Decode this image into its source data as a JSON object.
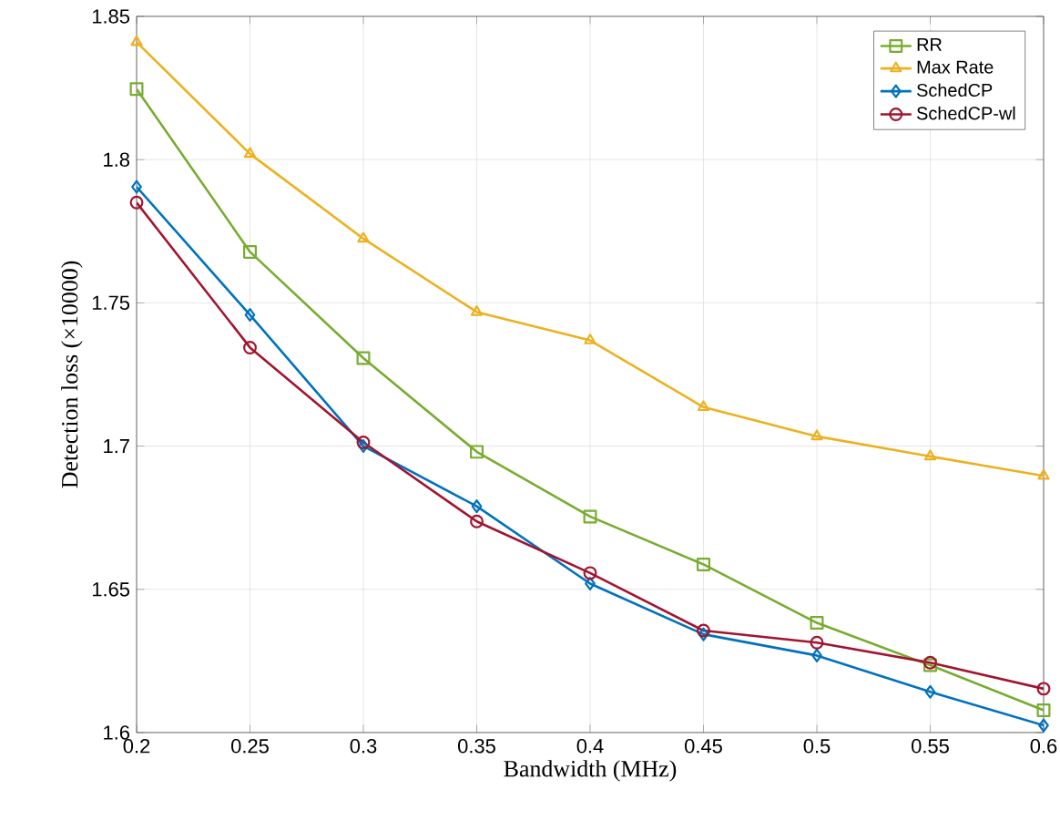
{
  "chart_data": {
    "type": "line",
    "xlabel": "Bandwidth (MHz)",
    "ylabel": "Detection loss (×10000)",
    "x": [
      0.2,
      0.25,
      0.3,
      0.35,
      0.4,
      0.45,
      0.5,
      0.55,
      0.6
    ],
    "series": [
      {
        "name": "RR",
        "color": "#77ac30",
        "marker": "square",
        "values": [
          1.8246,
          1.7678,
          1.7307,
          1.698,
          1.6754,
          1.6587,
          1.6383,
          1.6235,
          1.6078
        ]
      },
      {
        "name": "Max Rate",
        "color": "#edb120",
        "marker": "triangle",
        "values": [
          1.841,
          1.802,
          1.7724,
          1.7468,
          1.7369,
          1.7136,
          1.7034,
          1.6964,
          1.6896
        ]
      },
      {
        "name": "SchedCP",
        "color": "#0072bd",
        "marker": "diamond",
        "values": [
          1.7905,
          1.7458,
          1.7,
          1.679,
          1.652,
          1.6343,
          1.6269,
          1.6142,
          1.6025
        ]
      },
      {
        "name": "SchedCP-wl",
        "color": "#a2142f",
        "marker": "circle",
        "values": [
          1.785,
          1.7344,
          1.7013,
          1.6737,
          1.6557,
          1.6356,
          1.6314,
          1.6244,
          1.6153
        ]
      }
    ],
    "xlim": [
      0.2,
      0.6
    ],
    "ylim": [
      1.6,
      1.85
    ],
    "xticks": [
      0.2,
      0.25,
      0.3,
      0.35,
      0.4,
      0.45,
      0.5,
      0.55,
      0.6
    ],
    "yticks": [
      1.6,
      1.65,
      1.7,
      1.75,
      1.8,
      1.85
    ],
    "grid": true,
    "legend": "top right",
    "line_style": "solid"
  }
}
